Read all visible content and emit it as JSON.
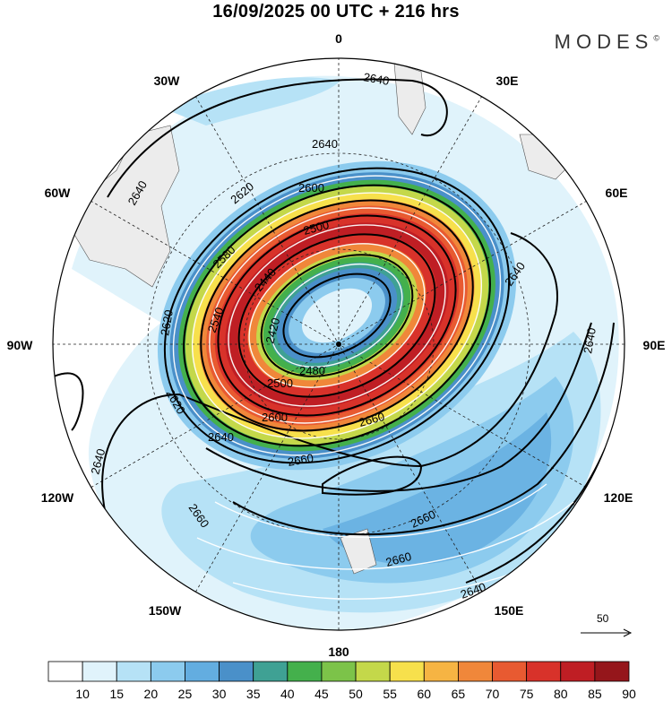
{
  "header": {
    "title": "16/09/2025  00 UTC  + 216 hrs",
    "brand": "MODES",
    "brand_mark": "©"
  },
  "map": {
    "projection": "polar-stereographic-south",
    "longitude_labels": [
      "0",
      "30E",
      "60E",
      "90E",
      "120E",
      "150E",
      "180",
      "150W",
      "120W",
      "90W",
      "60W",
      "30W"
    ],
    "contour_labels": [
      "2640",
      "2640",
      "2640",
      "2640",
      "2640",
      "2640",
      "2640",
      "2640",
      "2620",
      "2620",
      "2620",
      "2600",
      "2600",
      "2580",
      "2540",
      "2500",
      "2500",
      "2480",
      "2440",
      "2420",
      "2660",
      "2660",
      "2660",
      "2660",
      "2680",
      "2660",
      "2640"
    ],
    "reference_vector": {
      "value": "50"
    }
  },
  "colorbar": {
    "labels": [
      "10",
      "15",
      "20",
      "25",
      "30",
      "35",
      "40",
      "45",
      "50",
      "55",
      "60",
      "65",
      "70",
      "75",
      "80",
      "85",
      "90"
    ],
    "colors": [
      "#ffffff",
      "#e0f3fb",
      "#b6e2f6",
      "#8ccbee",
      "#63ade0",
      "#4a90c9",
      "#3fa194",
      "#44b04c",
      "#7cc349",
      "#c4d84a",
      "#f7e04c",
      "#f6b443",
      "#f0873a",
      "#e85a31",
      "#d8322a",
      "#bf1e24",
      "#95161b"
    ]
  }
}
